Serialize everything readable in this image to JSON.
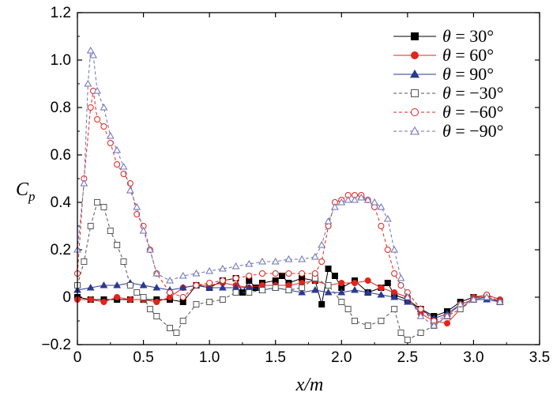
{
  "chart_data": {
    "type": "line",
    "title": "",
    "xlabel": "x/m",
    "ylabel": "Cp",
    "xlim": [
      0,
      3.5
    ],
    "ylim": [
      -0.2,
      1.2
    ],
    "xticks": [
      "0",
      "0.5",
      "1.0",
      "1.5",
      "2.0",
      "2.5",
      "3.0",
      "3.5"
    ],
    "yticks": [
      "-0.2",
      "0",
      "0.2",
      "0.4",
      "0.6",
      "0.8",
      "1.0",
      "1.2"
    ],
    "legend_position": "top-right",
    "series": [
      {
        "name": "θ = 30°",
        "color": "#000000",
        "marker": "square",
        "filled": true,
        "dash": "solid",
        "x": [
          0.0,
          0.1,
          0.2,
          0.3,
          0.4,
          0.5,
          0.6,
          0.7,
          0.8,
          0.9,
          1.0,
          1.1,
          1.2,
          1.25,
          1.3,
          1.35,
          1.4,
          1.5,
          1.55,
          1.6,
          1.7,
          1.8,
          1.85,
          1.9,
          1.95,
          2.0,
          2.1,
          2.2,
          2.3,
          2.35,
          2.4,
          2.5,
          2.6,
          2.7,
          2.8,
          2.9,
          3.0,
          3.1,
          3.2
        ],
        "values": [
          0.0,
          -0.01,
          -0.01,
          -0.01,
          -0.01,
          -0.01,
          -0.01,
          -0.01,
          -0.02,
          0.05,
          0.04,
          0.07,
          0.08,
          0.02,
          0.07,
          0.04,
          0.06,
          0.07,
          0.09,
          0.06,
          0.08,
          0.07,
          -0.03,
          0.12,
          0.09,
          0.04,
          0.07,
          0.02,
          0.04,
          0.06,
          0.01,
          -0.01,
          -0.05,
          -0.08,
          -0.06,
          -0.02,
          0.0,
          0.0,
          -0.02
        ]
      },
      {
        "name": "θ = 60°",
        "color": "#e3231c",
        "marker": "circle",
        "filled": true,
        "dash": "solid",
        "x": [
          0.0,
          0.1,
          0.2,
          0.3,
          0.4,
          0.5,
          0.6,
          0.7,
          0.8,
          0.9,
          1.0,
          1.1,
          1.2,
          1.3,
          1.4,
          1.5,
          1.6,
          1.7,
          1.8,
          1.9,
          2.0,
          2.1,
          2.2,
          2.3,
          2.4,
          2.5,
          2.6,
          2.7,
          2.8,
          2.9,
          3.0,
          3.1,
          3.2
        ],
        "values": [
          -0.01,
          -0.01,
          -0.02,
          0.0,
          -0.01,
          -0.01,
          -0.02,
          0.0,
          0.04,
          0.05,
          0.05,
          0.06,
          0.05,
          0.04,
          0.05,
          0.05,
          0.05,
          0.06,
          0.07,
          0.05,
          0.06,
          0.06,
          0.07,
          0.04,
          0.02,
          0.0,
          -0.07,
          -0.1,
          -0.11,
          -0.05,
          0.0,
          0.01,
          -0.01
        ]
      },
      {
        "name": "θ = 90°",
        "color": "#2b3990",
        "marker": "triangle",
        "filled": true,
        "dash": "solid",
        "x": [
          0.0,
          0.1,
          0.2,
          0.3,
          0.4,
          0.5,
          0.6,
          0.7,
          0.8,
          0.9,
          1.0,
          1.1,
          1.2,
          1.3,
          1.4,
          1.5,
          1.6,
          1.7,
          1.8,
          1.9,
          2.0,
          2.1,
          2.2,
          2.3,
          2.4,
          2.5,
          2.6,
          2.7,
          2.8,
          2.9,
          3.0,
          3.1,
          3.2
        ],
        "values": [
          0.03,
          0.04,
          0.05,
          0.05,
          0.06,
          0.05,
          0.04,
          0.03,
          0.04,
          0.05,
          0.04,
          0.04,
          0.04,
          0.04,
          0.03,
          0.04,
          0.03,
          0.02,
          0.03,
          0.02,
          0.02,
          0.03,
          0.02,
          0.01,
          0.0,
          -0.02,
          -0.05,
          -0.09,
          -0.07,
          -0.03,
          -0.01,
          -0.01,
          -0.02
        ]
      },
      {
        "name": "θ = −30°",
        "color": "#555555",
        "marker": "square",
        "filled": false,
        "dash": "dash",
        "x": [
          0.0,
          0.05,
          0.1,
          0.15,
          0.2,
          0.25,
          0.3,
          0.35,
          0.4,
          0.45,
          0.5,
          0.55,
          0.6,
          0.7,
          0.75,
          0.8,
          0.9,
          1.0,
          1.1,
          1.2,
          1.3,
          1.4,
          1.5,
          1.6,
          1.7,
          1.8,
          1.9,
          2.0,
          2.05,
          2.1,
          2.2,
          2.3,
          2.4,
          2.45,
          2.5,
          2.6,
          2.7,
          2.8,
          2.9,
          3.0,
          3.1,
          3.2
        ],
        "values": [
          0.05,
          0.15,
          0.3,
          0.4,
          0.38,
          0.28,
          0.22,
          0.15,
          0.05,
          0.02,
          0.0,
          -0.05,
          -0.08,
          -0.13,
          -0.15,
          -0.1,
          -0.03,
          -0.02,
          -0.01,
          0.02,
          0.02,
          0.03,
          0.04,
          0.03,
          0.04,
          0.08,
          0.05,
          -0.02,
          -0.05,
          -0.1,
          -0.12,
          -0.1,
          -0.05,
          -0.15,
          -0.18,
          -0.15,
          -0.12,
          -0.08,
          -0.05,
          -0.01,
          0.0,
          -0.02
        ]
      },
      {
        "name": "θ = −60°",
        "color": "#e3231c",
        "marker": "circle",
        "filled": false,
        "dash": "dash",
        "x": [
          0.0,
          0.05,
          0.1,
          0.12,
          0.15,
          0.2,
          0.25,
          0.3,
          0.35,
          0.4,
          0.45,
          0.5,
          0.55,
          0.6,
          0.7,
          0.8,
          0.9,
          1.0,
          1.1,
          1.2,
          1.3,
          1.4,
          1.5,
          1.6,
          1.7,
          1.8,
          1.85,
          1.9,
          1.95,
          2.0,
          2.05,
          2.1,
          2.15,
          2.2,
          2.25,
          2.3,
          2.35,
          2.4,
          2.45,
          2.5,
          2.6,
          2.7,
          2.8,
          2.9,
          3.0,
          3.1,
          3.2
        ],
        "values": [
          0.1,
          0.5,
          0.8,
          0.87,
          0.75,
          0.72,
          0.65,
          0.56,
          0.52,
          0.48,
          0.35,
          0.3,
          0.2,
          0.1,
          0.02,
          0.0,
          0.05,
          0.06,
          0.07,
          0.08,
          0.09,
          0.1,
          0.1,
          0.1,
          0.1,
          0.1,
          0.15,
          0.3,
          0.4,
          0.41,
          0.43,
          0.43,
          0.43,
          0.41,
          0.38,
          0.3,
          0.2,
          0.1,
          0.05,
          0.02,
          -0.05,
          -0.1,
          -0.08,
          -0.03,
          -0.01,
          0.01,
          -0.02
        ]
      },
      {
        "name": "θ = −90°",
        "color": "#6b6fb7",
        "marker": "triangle",
        "filled": false,
        "dash": "dash",
        "x": [
          0.0,
          0.05,
          0.08,
          0.1,
          0.12,
          0.15,
          0.2,
          0.25,
          0.3,
          0.35,
          0.4,
          0.45,
          0.5,
          0.55,
          0.6,
          0.7,
          0.8,
          0.9,
          1.0,
          1.1,
          1.2,
          1.3,
          1.4,
          1.5,
          1.6,
          1.7,
          1.8,
          1.85,
          1.9,
          1.95,
          2.0,
          2.05,
          2.1,
          2.15,
          2.2,
          2.25,
          2.3,
          2.35,
          2.4,
          2.45,
          2.5,
          2.6,
          2.7,
          2.8,
          2.9,
          3.0,
          3.1,
          3.2
        ],
        "values": [
          0.2,
          0.48,
          0.9,
          1.04,
          1.02,
          0.87,
          0.8,
          0.68,
          0.62,
          0.55,
          0.45,
          0.38,
          0.28,
          0.2,
          0.1,
          0.07,
          0.09,
          0.1,
          0.11,
          0.12,
          0.13,
          0.14,
          0.15,
          0.15,
          0.16,
          0.16,
          0.17,
          0.22,
          0.32,
          0.38,
          0.4,
          0.41,
          0.41,
          0.42,
          0.41,
          0.4,
          0.38,
          0.33,
          0.2,
          0.08,
          0.0,
          -0.08,
          -0.12,
          -0.08,
          -0.03,
          -0.01,
          0.0,
          -0.02
        ]
      }
    ]
  }
}
